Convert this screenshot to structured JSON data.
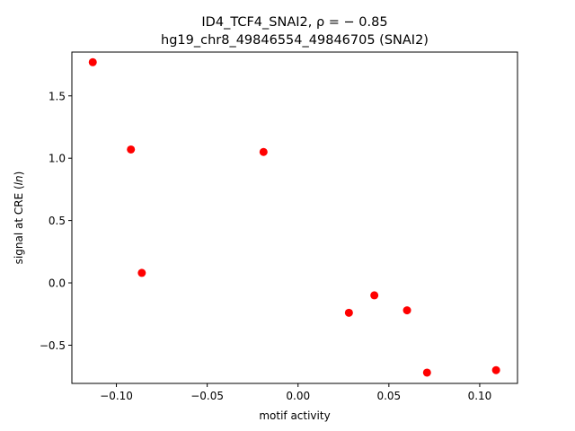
{
  "chart_data": {
    "type": "scatter",
    "title_line1": "ID4_TCF4_SNAI2, ρ = − 0.85",
    "title_line2": "hg19_chr8_49846554_49846705 (SNAI2)",
    "xlabel": "motif activity",
    "ylabel": "signal at CRE (ln)",
    "xlim": [
      -0.1245,
      0.1208
    ],
    "ylim": [
      -0.8065,
      1.8513
    ],
    "xticks": [
      -0.1,
      -0.05,
      0.0,
      0.05,
      0.1
    ],
    "xtick_labels": [
      "−0.10",
      "−0.05",
      "0.00",
      "0.05",
      "0.10"
    ],
    "yticks": [
      -0.5,
      0.0,
      0.5,
      1.0,
      1.5
    ],
    "ytick_labels": [
      "−0.5",
      "0.0",
      "0.5",
      "1.0",
      "1.5"
    ],
    "marker_color": "#ff0000",
    "grid": false,
    "points": [
      {
        "x": -0.113,
        "y": 1.77
      },
      {
        "x": -0.092,
        "y": 1.07
      },
      {
        "x": -0.086,
        "y": 0.08
      },
      {
        "x": -0.019,
        "y": 1.05
      },
      {
        "x": 0.028,
        "y": -0.24
      },
      {
        "x": 0.042,
        "y": -0.1
      },
      {
        "x": 0.06,
        "y": -0.22
      },
      {
        "x": 0.071,
        "y": -0.72
      },
      {
        "x": 0.109,
        "y": -0.7
      }
    ]
  }
}
